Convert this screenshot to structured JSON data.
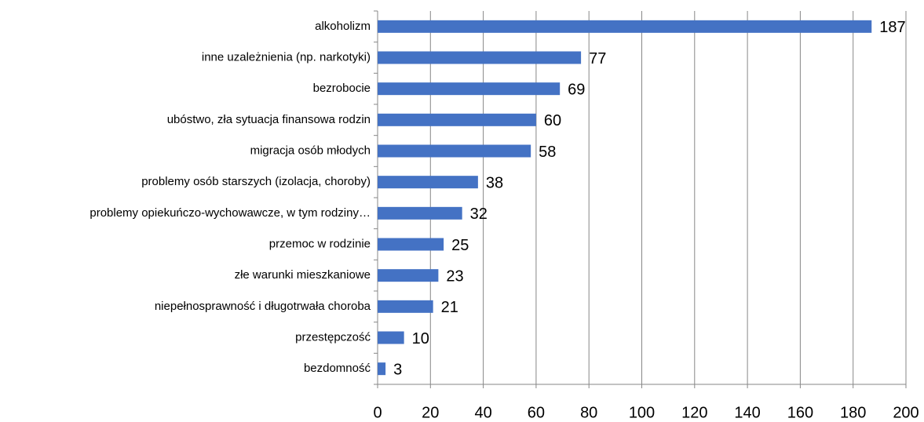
{
  "chart_data": {
    "type": "bar",
    "orientation": "horizontal",
    "categories": [
      "alkoholizm",
      "inne uzależnienia (np. narkotyki)",
      "bezrobocie",
      "ubóstwo, zła sytuacja finansowa rodzin",
      "migracja osób młodych",
      "problemy osób starszych (izolacja, choroby)",
      "problemy opiekuńczo-wychowawcze, w tym rodziny…",
      "przemoc w rodzinie",
      "złe warunki mieszkaniowe",
      "niepełnosprawność i długotrwała choroba",
      "przestępczość",
      "bezdomność"
    ],
    "values": [
      187,
      77,
      69,
      60,
      58,
      38,
      32,
      25,
      23,
      21,
      10,
      3
    ],
    "color": "#4472c4",
    "xlim": [
      0,
      200
    ],
    "xticks": [
      0,
      20,
      40,
      60,
      80,
      100,
      120,
      140,
      160,
      180,
      200
    ],
    "grid": true
  }
}
